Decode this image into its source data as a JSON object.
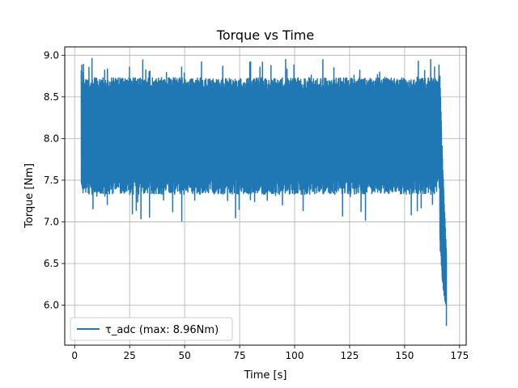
{
  "chart_data": {
    "type": "line",
    "title": "Torque vs Time",
    "xlabel": "Time [s]",
    "ylabel": "Torque [Nm]",
    "xlim": [
      -4.5,
      178
    ],
    "ylim": [
      5.52,
      9.1
    ],
    "xticks": [
      0,
      25,
      50,
      75,
      100,
      125,
      150,
      175
    ],
    "yticks": [
      6.0,
      6.5,
      7.0,
      7.5,
      8.0,
      8.5,
      9.0
    ],
    "xtick_labels": [
      "0",
      "25",
      "50",
      "75",
      "100",
      "125",
      "150",
      "175"
    ],
    "ytick_labels": [
      "6.0",
      "6.5",
      "7.0",
      "7.5",
      "8.0",
      "8.5",
      "9.0"
    ],
    "grid": true,
    "legend_position": "lower-left",
    "series": [
      {
        "name": "τ_adc (max: 8.96Nm)",
        "color": "#1f77b4",
        "x_range": [
          3,
          169
        ],
        "steady_end": 166,
        "steady_lower_typical": 7.45,
        "steady_upper_typical": 8.65,
        "steady_min": 7.01,
        "steady_max": 8.96,
        "final_min": 5.68,
        "final_value": 5.75
      }
    ]
  }
}
